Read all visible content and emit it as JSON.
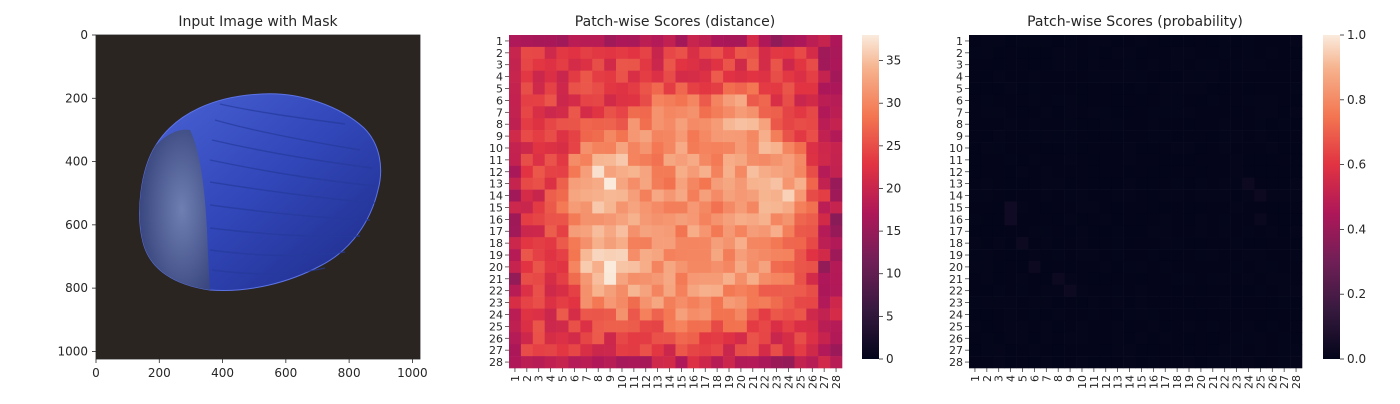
{
  "panels": [
    {
      "title": "Input Image with Mask",
      "xticks": [
        "0",
        "200",
        "400",
        "600",
        "800",
        "1000"
      ],
      "yticks": [
        "0",
        "200",
        "400",
        "600",
        "800",
        "1000"
      ]
    },
    {
      "title": "Patch-wise Scores (distance)",
      "colorbar_ticks": [
        "0",
        "5",
        "10",
        "15",
        "20",
        "25",
        "30",
        "35"
      ]
    },
    {
      "title": "Patch-wise Scores (probability)",
      "colorbar_ticks": [
        "0.0",
        "0.2",
        "0.4",
        "0.6",
        "0.8",
        "1.0"
      ]
    }
  ],
  "chart_data": [
    {
      "type": "image",
      "title": "Input Image with Mask",
      "xlim": [
        0,
        1024
      ],
      "ylim": [
        1024,
        0
      ],
      "xticks": [
        0,
        200,
        400,
        600,
        800,
        1000
      ],
      "yticks": [
        0,
        200,
        400,
        600,
        800,
        1000
      ]
    },
    {
      "type": "heatmap",
      "title": "Patch-wise Scores (distance)",
      "rows": 28,
      "cols": 28,
      "tick_labels": [
        "1",
        "2",
        "3",
        "4",
        "5",
        "6",
        "7",
        "8",
        "9",
        "10",
        "11",
        "12",
        "13",
        "14",
        "15",
        "16",
        "17",
        "18",
        "19",
        "20",
        "21",
        "22",
        "23",
        "24",
        "25",
        "26",
        "27",
        "28"
      ],
      "color_range": [
        0,
        38
      ],
      "colorbar_ticks": [
        0,
        5,
        10,
        15,
        20,
        25,
        30,
        35
      ],
      "colormap": "rocket",
      "background_value": 23,
      "object_value": 31,
      "object_center_col": 15.5,
      "object_center_row": 15.5,
      "hotspots": [
        {
          "col": 8.5,
          "row": 13,
          "value": 36
        },
        {
          "col": 8.5,
          "row": 20.5,
          "value": 37
        },
        {
          "col": 23,
          "row": 13,
          "value": 35
        },
        {
          "col": 20,
          "row": 8,
          "value": 33
        }
      ]
    },
    {
      "type": "heatmap",
      "title": "Patch-wise Scores (probability)",
      "rows": 28,
      "cols": 28,
      "tick_labels": [
        "1",
        "2",
        "3",
        "4",
        "5",
        "6",
        "7",
        "8",
        "9",
        "10",
        "11",
        "12",
        "13",
        "14",
        "15",
        "16",
        "17",
        "18",
        "19",
        "20",
        "21",
        "22",
        "23",
        "24",
        "25",
        "26",
        "27",
        "28"
      ],
      "color_range": [
        0.0,
        1.0
      ],
      "colorbar_ticks": [
        0.0,
        0.2,
        0.4,
        0.6,
        0.8,
        1.0
      ],
      "colormap": "rocket",
      "background_value": 0.0,
      "faint_cells": [
        {
          "col": 4,
          "row": 15,
          "value": 0.04
        },
        {
          "col": 4,
          "row": 16,
          "value": 0.04
        },
        {
          "col": 5,
          "row": 18,
          "value": 0.03
        },
        {
          "col": 6,
          "row": 20,
          "value": 0.03
        },
        {
          "col": 8,
          "row": 21,
          "value": 0.03
        },
        {
          "col": 9,
          "row": 22,
          "value": 0.03
        },
        {
          "col": 24,
          "row": 13,
          "value": 0.03
        },
        {
          "col": 25,
          "row": 14,
          "value": 0.03
        },
        {
          "col": 25,
          "row": 16,
          "value": 0.02
        }
      ]
    }
  ]
}
